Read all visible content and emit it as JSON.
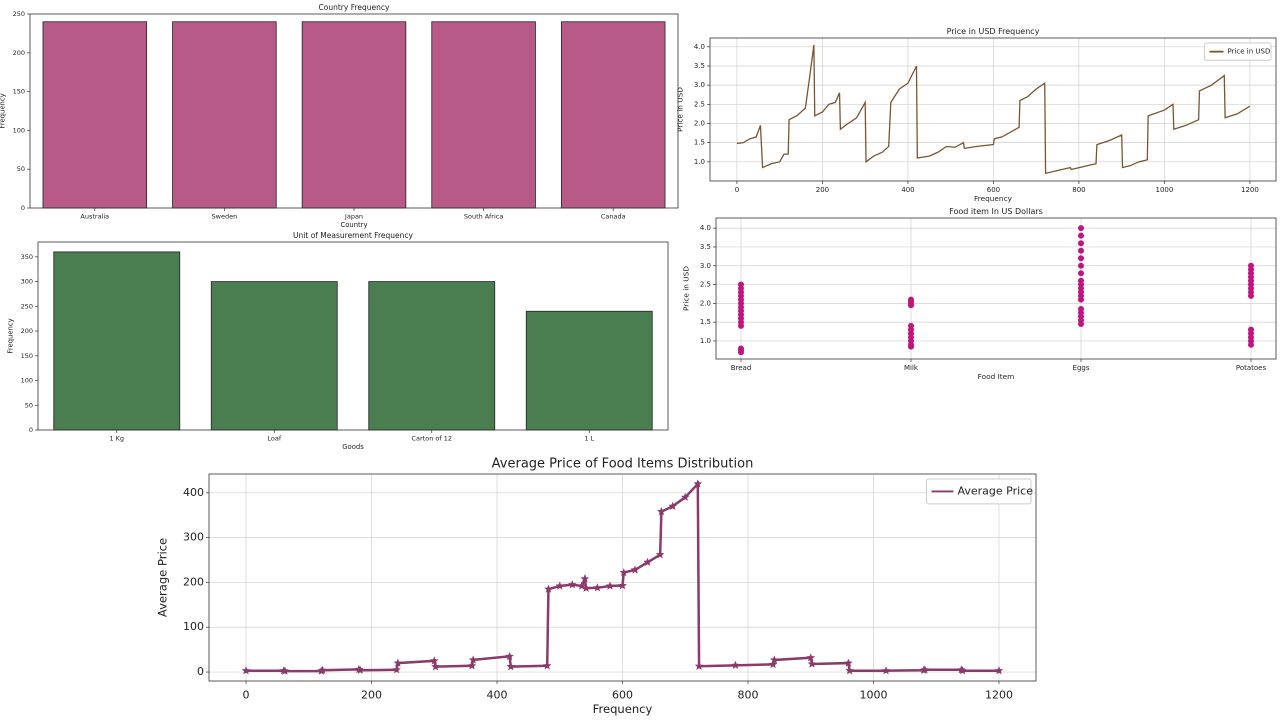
{
  "chart_data": [
    {
      "type": "bar",
      "title": "Country Frequency",
      "xlabel": "Country",
      "ylabel": "Frequency",
      "categories": [
        "Australia",
        "Sweden",
        "Japan",
        "South Africa",
        "Canada"
      ],
      "values": [
        240,
        240,
        240,
        240,
        240
      ],
      "color": "#b85a87",
      "ylim": [
        0,
        250
      ],
      "yticks": [
        0,
        50,
        100,
        150,
        200,
        250
      ],
      "grid": false
    },
    {
      "type": "line",
      "title": "Price in USD Frequency",
      "xlabel": "Frequency",
      "ylabel": "Price in USD",
      "x": [
        0,
        15,
        30,
        45,
        55,
        60,
        80,
        100,
        110,
        120,
        122,
        140,
        160,
        170,
        180,
        182,
        200,
        215,
        230,
        240,
        242,
        260,
        280,
        300,
        302,
        320,
        340,
        355,
        360,
        380,
        400,
        420,
        422,
        450,
        470,
        490,
        510,
        530,
        532,
        560,
        600,
        602,
        620,
        660,
        662,
        680,
        700,
        720,
        722,
        760,
        780,
        782,
        820,
        840,
        842,
        870,
        900,
        902,
        920,
        940,
        960,
        962,
        1000,
        1020,
        1022,
        1050,
        1080,
        1082,
        1110,
        1140,
        1142,
        1170,
        1200
      ],
      "series": [
        {
          "name": "Price in USD",
          "color": "#7b5530",
          "values": [
            1.48,
            1.5,
            1.6,
            1.65,
            1.95,
            0.85,
            0.95,
            1.0,
            1.2,
            1.2,
            2.1,
            2.2,
            2.4,
            3.2,
            4.05,
            2.2,
            2.3,
            2.5,
            2.55,
            2.8,
            1.85,
            2.0,
            2.15,
            2.55,
            1.0,
            1.15,
            1.25,
            1.4,
            2.55,
            2.9,
            3.05,
            3.5,
            1.1,
            1.15,
            1.25,
            1.4,
            1.38,
            1.5,
            1.35,
            1.4,
            1.45,
            1.6,
            1.65,
            1.9,
            2.6,
            2.7,
            2.9,
            3.05,
            0.7,
            0.8,
            0.85,
            0.8,
            0.9,
            0.95,
            1.45,
            1.55,
            1.7,
            0.85,
            0.9,
            1.0,
            1.05,
            2.2,
            2.35,
            2.5,
            1.85,
            1.95,
            2.1,
            2.85,
            3.0,
            3.25,
            2.15,
            2.25,
            2.45
          ]
        }
      ],
      "xlim": [
        -63,
        1261
      ],
      "xticks": [
        0,
        200,
        400,
        600,
        800,
        1000,
        1200
      ],
      "ylim": [
        0.5,
        4.23
      ],
      "yticks": [
        {
          "value": 1,
          "label": "1.0"
        },
        {
          "value": 1.5,
          "label": "1.5"
        },
        {
          "value": 2,
          "label": "2.0"
        },
        {
          "value": 2.5,
          "label": "2.5"
        },
        {
          "value": 3,
          "label": "3.0"
        },
        {
          "value": 3.5,
          "label": "3.5"
        },
        {
          "value": 4,
          "label": "4.0"
        }
      ],
      "grid": true,
      "legend": "upper right",
      "markers": false
    },
    {
      "type": "bar",
      "title": "Unit of Measurement Frequency",
      "xlabel": "Goods",
      "ylabel": "Frequency",
      "categories": [
        "1 Kg",
        "Loaf",
        "Carton of 12",
        "1 L"
      ],
      "values": [
        360,
        300,
        300,
        240
      ],
      "color": "#4a7d4f",
      "ylim": [
        0,
        380
      ],
      "yticks": [
        0,
        50,
        100,
        150,
        200,
        250,
        300,
        350
      ],
      "grid": false
    },
    {
      "type": "scatter",
      "title": "Food item In US Dollars",
      "xlabel": "Food Item",
      "ylabel": "Price in USD",
      "categories": [
        "Bread",
        "Milk",
        "Eggs",
        "Potatoes"
      ],
      "values": [
        [
          0.7,
          0.75,
          0.8,
          1.4,
          1.5,
          1.6,
          1.7,
          1.8,
          1.9,
          2.0,
          2.1,
          2.2,
          2.3,
          2.4,
          2.5
        ],
        [
          0.85,
          0.9,
          1.0,
          1.1,
          1.2,
          1.3,
          1.4,
          1.95,
          2.0,
          2.05,
          2.1
        ],
        [
          1.45,
          1.55,
          1.65,
          1.75,
          1.85,
          2.1,
          2.2,
          2.3,
          2.4,
          2.5,
          2.6,
          2.8,
          3.0,
          3.2,
          3.4,
          3.6,
          3.8,
          4.0
        ],
        [
          0.9,
          1.0,
          1.1,
          1.2,
          1.3,
          2.2,
          2.3,
          2.4,
          2.5,
          2.6,
          2.7,
          2.8,
          2.9,
          3.0
        ]
      ],
      "color": "#c0157e",
      "ylim": [
        0.52,
        4.27
      ],
      "yticks": [
        {
          "value": 1,
          "label": "1.0"
        },
        {
          "value": 1.5,
          "label": "1.5"
        },
        {
          "value": 2,
          "label": "2.0"
        },
        {
          "value": 2.5,
          "label": "2.5"
        },
        {
          "value": 3,
          "label": "3.0"
        },
        {
          "value": 3.5,
          "label": "3.5"
        },
        {
          "value": 4,
          "label": "4.0"
        }
      ],
      "grid": true
    },
    {
      "type": "line",
      "title": "Average Price of Food Items Distribution",
      "xlabel": "Frequency",
      "ylabel": "Average Price",
      "x": [
        0,
        60,
        62,
        120,
        122,
        180,
        182,
        240,
        242,
        300,
        302,
        360,
        362,
        420,
        422,
        480,
        482,
        500,
        520,
        535,
        540,
        542,
        560,
        580,
        600,
        602,
        620,
        640,
        660,
        662,
        680,
        700,
        720,
        722,
        780,
        840,
        842,
        900,
        902,
        960,
        962,
        1020,
        1080,
        1082,
        1140,
        1142,
        1200
      ],
      "series": [
        {
          "name": "Average Price",
          "color": "#8b3a6b",
          "values": [
            3,
            3,
            2,
            2,
            4,
            6,
            4,
            5,
            20,
            25,
            12,
            14,
            27,
            35,
            12,
            14,
            185,
            192,
            195,
            192,
            208,
            187,
            188,
            192,
            193,
            222,
            228,
            245,
            262,
            358,
            370,
            390,
            420,
            13,
            15,
            17,
            27,
            32,
            18,
            20,
            3,
            3,
            4,
            5,
            5,
            3,
            3
          ]
        }
      ],
      "xlim": [
        -59,
        1259
      ],
      "xticks": [
        0,
        200,
        400,
        600,
        800,
        1000,
        1200
      ],
      "ylim": [
        -20,
        442
      ],
      "yticks": [
        0,
        100,
        200,
        300,
        400
      ],
      "grid": true,
      "legend": "upper right",
      "markers": true
    }
  ]
}
